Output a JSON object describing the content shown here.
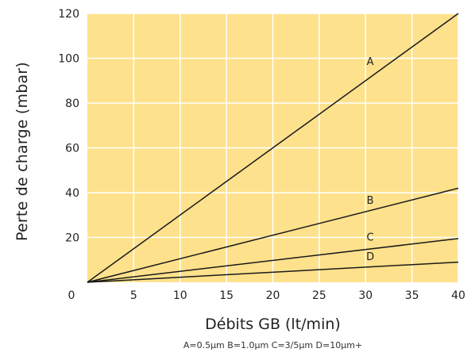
{
  "chart_data": {
    "type": "line",
    "xlabel": "Débits GB (lt/min)",
    "ylabel": "Perte de charge (mbar)",
    "caption": "A=0.5µm B=1.0µm C=3/5µm D=10µm+",
    "origin_label": "0",
    "xlim": [
      0,
      40
    ],
    "ylim": [
      0,
      120
    ],
    "x_ticks": [
      5,
      10,
      15,
      20,
      25,
      30,
      35,
      40
    ],
    "y_ticks": [
      20,
      40,
      60,
      80,
      100,
      120
    ],
    "grid": true,
    "colors": {
      "plot_background": "#fde18c",
      "grid": "#ffffff",
      "line": "#1a1a1a",
      "text": "#222222"
    },
    "series": [
      {
        "name": "A",
        "x": [
          0,
          40
        ],
        "y": [
          0,
          120
        ],
        "label_x": 30.5,
        "label_y": 97
      },
      {
        "name": "B",
        "x": [
          0,
          40
        ],
        "y": [
          0,
          42
        ],
        "label_x": 30.5,
        "label_y": 35
      },
      {
        "name": "C",
        "x": [
          0,
          40
        ],
        "y": [
          0,
          19.5
        ],
        "label_x": 30.5,
        "label_y": 18.5
      },
      {
        "name": "D",
        "x": [
          0,
          40
        ],
        "y": [
          0,
          9
        ],
        "label_x": 30.5,
        "label_y": 10
      }
    ]
  }
}
